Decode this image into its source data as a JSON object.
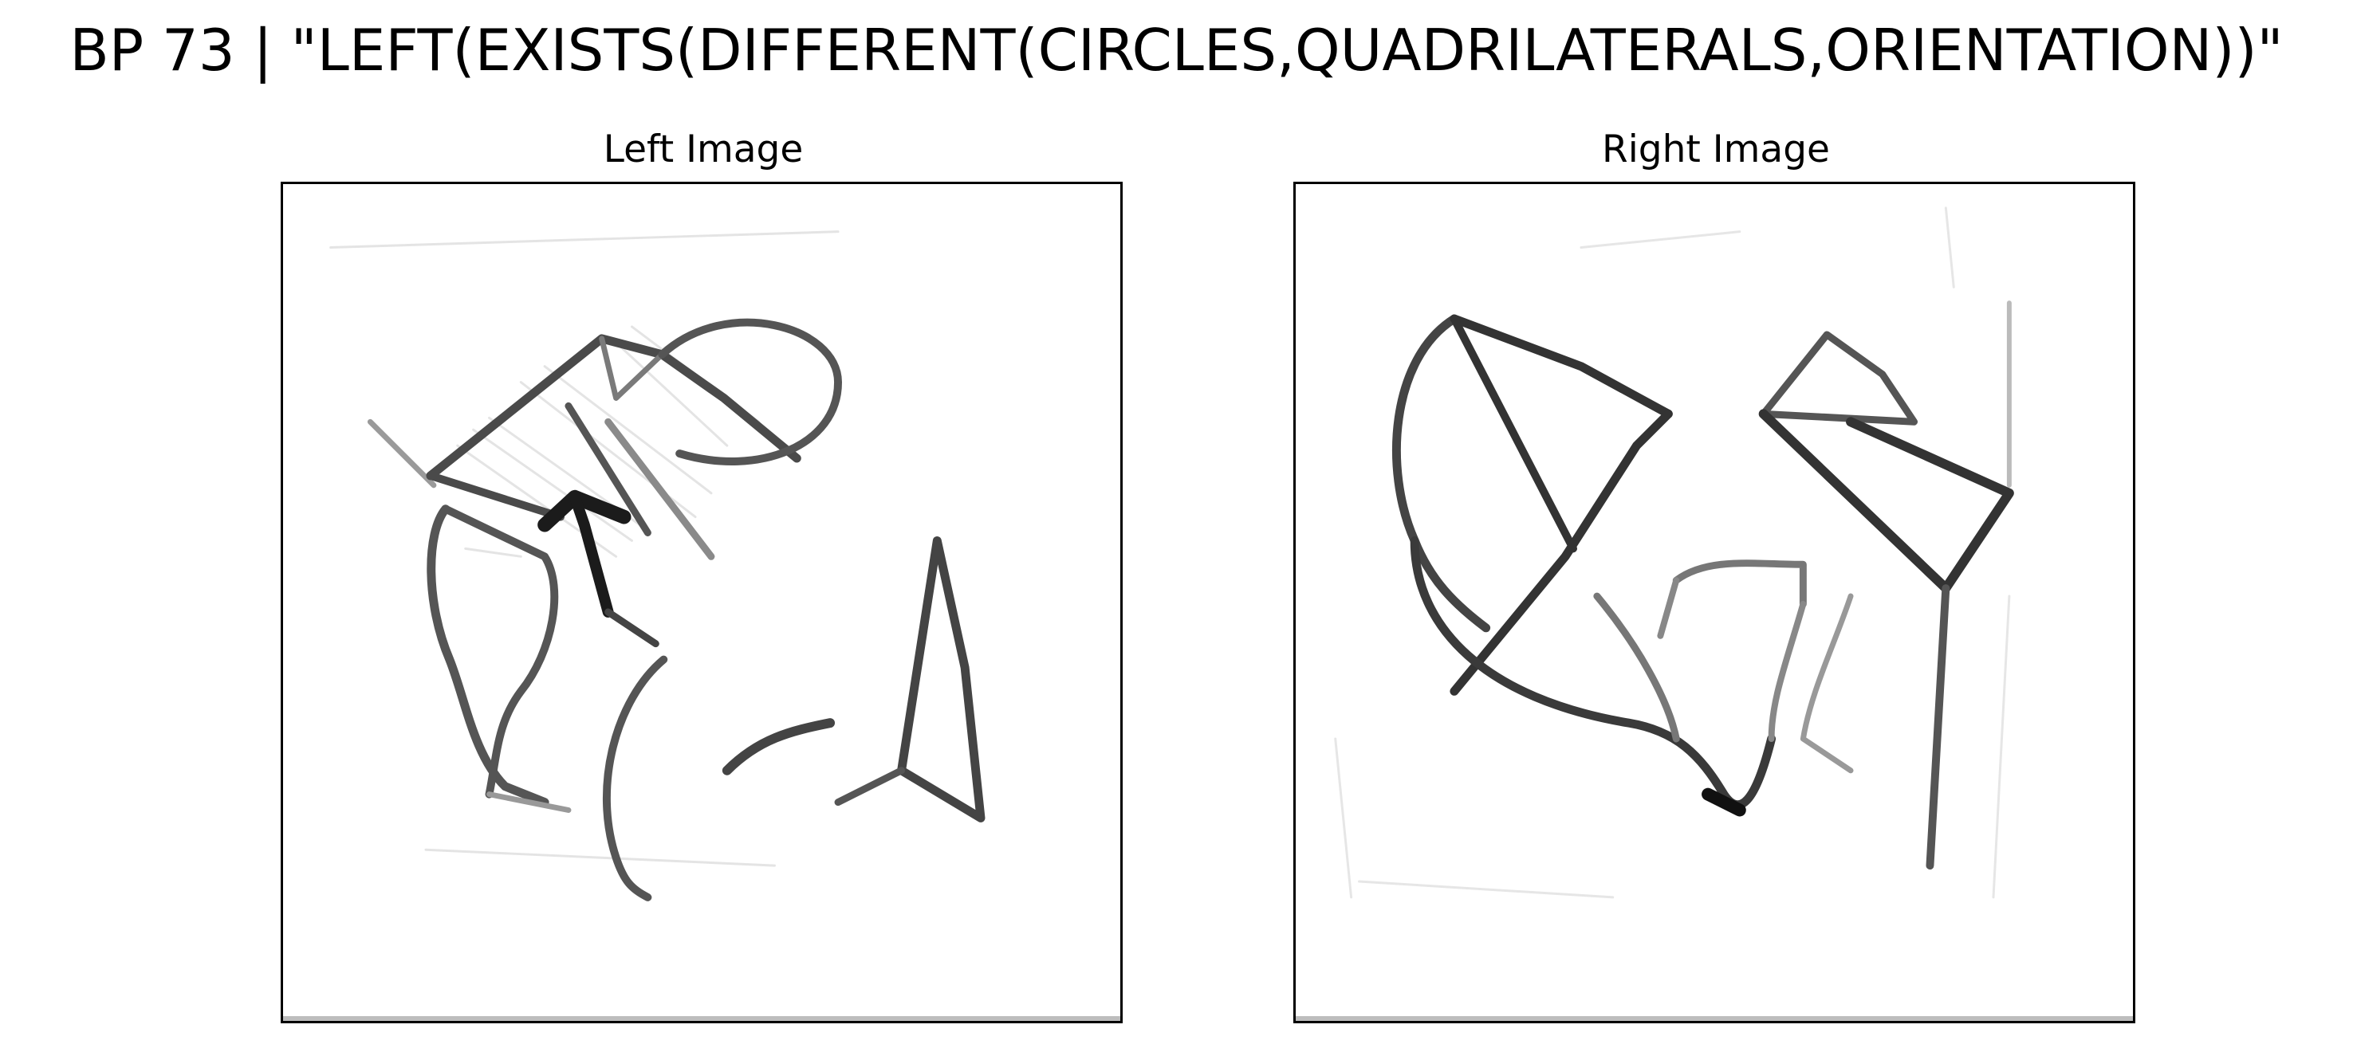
{
  "figure": {
    "title": "BP 73 | \"LEFT(EXISTS(DIFFERENT(CIRCLES,QUADRILATERALS,ORIENTATION))\"",
    "panels": [
      {
        "label": "Left Image",
        "content": "left-sketch-icon"
      },
      {
        "label": "Right Image",
        "content": "right-sketch-icon"
      }
    ]
  }
}
